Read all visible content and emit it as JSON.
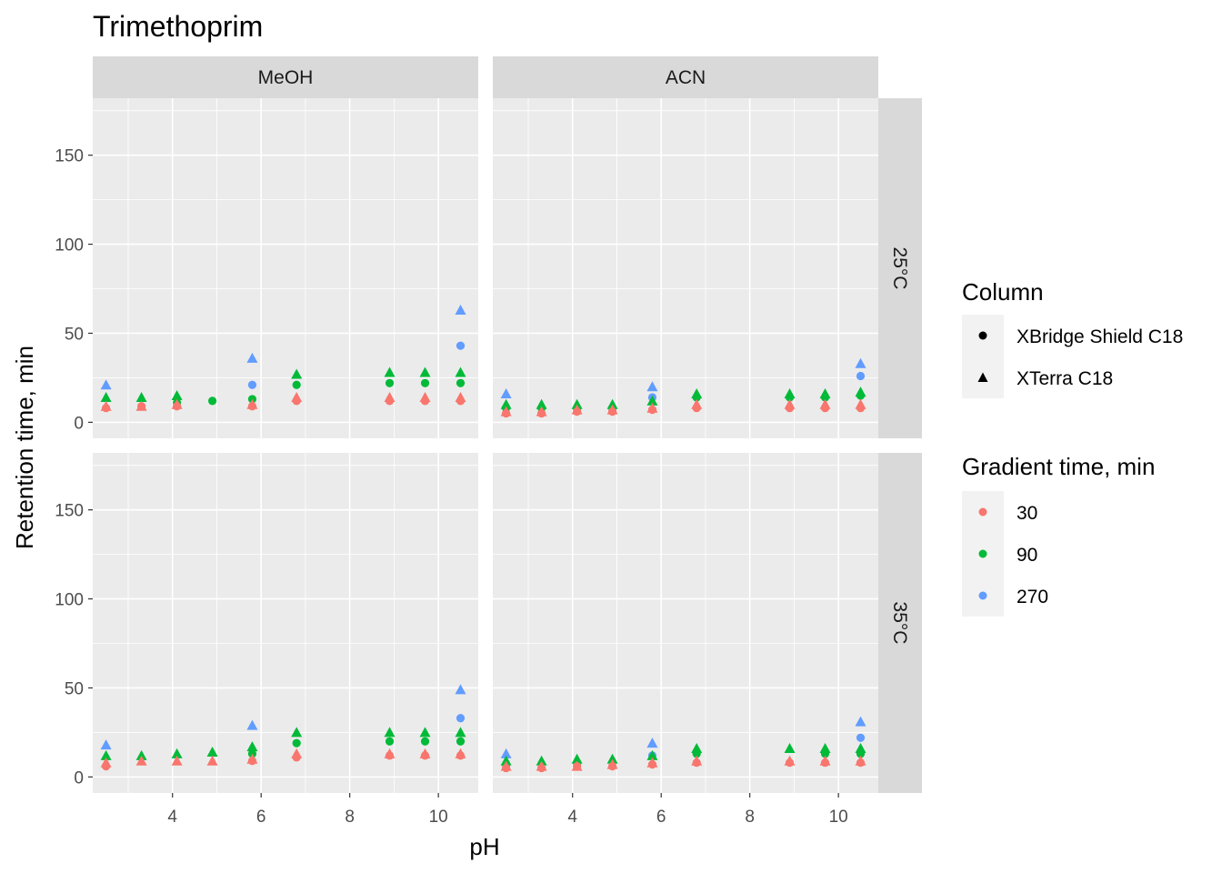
{
  "chart_data": {
    "type": "scatter",
    "title": "Trimethoprim",
    "xlabel": "pH",
    "ylabel": "Retention time, min",
    "xlim": [
      2.2,
      10.9
    ],
    "ylim": [
      -9,
      182
    ],
    "x_ticks": [
      4,
      6,
      8,
      10
    ],
    "y_ticks": [
      0,
      50,
      100,
      150
    ],
    "grid": true,
    "facet_columns": [
      "MeOH",
      "ACN"
    ],
    "facet_rows": [
      "25°C",
      "35°C"
    ],
    "legends": [
      {
        "title": "Column",
        "entries": [
          {
            "label": "XBridge Shield C18",
            "shape": "circle"
          },
          {
            "label": "XTerra C18",
            "shape": "triangle"
          }
        ]
      },
      {
        "title": "Gradient time, min",
        "entries": [
          {
            "label": "30",
            "color": "#F8766D"
          },
          {
            "label": "90",
            "color": "#00BA38"
          },
          {
            "label": "270",
            "color": "#619CFF"
          }
        ]
      }
    ],
    "colors": {
      "30": "#F8766D",
      "90": "#00BA38",
      "270": "#619CFF"
    },
    "panels": [
      {
        "column": "MeOH",
        "row": "25°C",
        "points": [
          {
            "column": "XTerra C18",
            "gradient": "270",
            "x": [
              2.5,
              5.8,
              10.5
            ],
            "y": [
              21,
              36,
              63
            ]
          },
          {
            "column": "XBridge Shield C18",
            "gradient": "270",
            "x": [
              5.8,
              10.5
            ],
            "y": [
              21,
              43
            ]
          },
          {
            "column": "XTerra C18",
            "gradient": "90",
            "x": [
              2.5,
              3.3,
              4.1,
              6.8,
              8.9,
              9.7,
              10.5
            ],
            "y": [
              14,
              14,
              15,
              27,
              28,
              28,
              28
            ]
          },
          {
            "column": "XBridge Shield C18",
            "gradient": "90",
            "x": [
              4.1,
              4.9,
              5.8,
              6.8,
              8.9,
              9.7,
              10.5
            ],
            "y": [
              11,
              12,
              13,
              21,
              22,
              22,
              22
            ]
          },
          {
            "column": "XTerra C18",
            "gradient": "30",
            "x": [
              2.5,
              3.3,
              4.1,
              5.8,
              6.8,
              8.9,
              9.7,
              10.5
            ],
            "y": [
              9,
              9,
              10,
              10,
              14,
              14,
              14,
              14
            ]
          },
          {
            "column": "XBridge Shield C18",
            "gradient": "30",
            "x": [
              2.5,
              3.3,
              4.1,
              5.8,
              6.8,
              8.9,
              9.7,
              10.5
            ],
            "y": [
              8,
              9,
              9,
              9,
              12,
              12,
              12,
              12
            ]
          }
        ]
      },
      {
        "column": "ACN",
        "row": "25°C",
        "points": [
          {
            "column": "XTerra C18",
            "gradient": "270",
            "x": [
              2.5,
              5.8,
              10.5
            ],
            "y": [
              16,
              20,
              33
            ]
          },
          {
            "column": "XBridge Shield C18",
            "gradient": "270",
            "x": [
              5.8,
              10.5
            ],
            "y": [
              14,
              26
            ]
          },
          {
            "column": "XTerra C18",
            "gradient": "90",
            "x": [
              2.5,
              3.3,
              4.1,
              4.9,
              5.8,
              6.8,
              8.9,
              9.7,
              10.5
            ],
            "y": [
              10,
              10,
              10,
              10,
              12,
              16,
              16,
              16,
              17
            ]
          },
          {
            "column": "XBridge Shield C18",
            "gradient": "90",
            "x": [
              2.5,
              3.3,
              4.1,
              4.9,
              6.8,
              8.9,
              9.7,
              10.5
            ],
            "y": [
              8,
              8,
              8,
              8,
              14,
              14,
              14,
              15
            ]
          },
          {
            "column": "XTerra C18",
            "gradient": "30",
            "x": [
              2.5,
              3.3,
              4.1,
              4.9,
              5.8,
              6.8,
              8.9,
              9.7,
              10.5
            ],
            "y": [
              6,
              6,
              7,
              7,
              8,
              10,
              10,
              10,
              10
            ]
          },
          {
            "column": "XBridge Shield C18",
            "gradient": "30",
            "x": [
              2.5,
              3.3,
              4.1,
              4.9,
              5.8,
              6.8,
              8.9,
              9.7,
              10.5
            ],
            "y": [
              5,
              5,
              6,
              6,
              7,
              8,
              8,
              8,
              8
            ]
          }
        ]
      },
      {
        "column": "MeOH",
        "row": "35°C",
        "points": [
          {
            "column": "XTerra C18",
            "gradient": "270",
            "x": [
              2.5,
              5.8,
              10.5
            ],
            "y": [
              18,
              29,
              49
            ]
          },
          {
            "column": "XBridge Shield C18",
            "gradient": "270",
            "x": [
              10.5
            ],
            "y": [
              33
            ]
          },
          {
            "column": "XTerra C18",
            "gradient": "90",
            "x": [
              2.5,
              3.3,
              4.1,
              4.9,
              5.8,
              6.8,
              8.9,
              9.7,
              10.5
            ],
            "y": [
              12,
              12,
              13,
              14,
              17,
              25,
              25,
              25,
              25
            ]
          },
          {
            "column": "XBridge Shield C18",
            "gradient": "90",
            "x": [
              5.8,
              6.8,
              8.9,
              9.7,
              10.5
            ],
            "y": [
              13,
              19,
              20,
              20,
              20
            ]
          },
          {
            "column": "XTerra C18",
            "gradient": "30",
            "x": [
              2.5,
              3.3,
              4.1,
              4.9,
              5.8,
              6.8,
              8.9,
              9.7,
              10.5
            ],
            "y": [
              8,
              9,
              9,
              9,
              10,
              13,
              13,
              13,
              13
            ]
          },
          {
            "column": "XBridge Shield C18",
            "gradient": "30",
            "x": [
              2.5,
              5.8,
              6.8,
              8.9,
              9.7,
              10.5
            ],
            "y": [
              6,
              9,
              11,
              12,
              12,
              12
            ]
          }
        ]
      },
      {
        "column": "ACN",
        "row": "35°C",
        "points": [
          {
            "column": "XTerra C18",
            "gradient": "270",
            "x": [
              2.5,
              5.8,
              10.5
            ],
            "y": [
              13,
              19,
              31
            ]
          },
          {
            "column": "XBridge Shield C18",
            "gradient": "270",
            "x": [
              5.8,
              10.5
            ],
            "y": [
              12,
              22
            ]
          },
          {
            "column": "XTerra C18",
            "gradient": "90",
            "x": [
              2.5,
              3.3,
              4.1,
              4.9,
              5.8,
              6.8,
              8.9,
              9.7,
              10.5
            ],
            "y": [
              9,
              9,
              10,
              10,
              12,
              16,
              16,
              16,
              16
            ]
          },
          {
            "column": "XBridge Shield C18",
            "gradient": "90",
            "x": [
              2.5,
              4.1,
              6.8,
              9.7,
              10.5
            ],
            "y": [
              7,
              8,
              13,
              13,
              13
            ]
          },
          {
            "column": "XTerra C18",
            "gradient": "30",
            "x": [
              2.5,
              3.3,
              4.1,
              4.9,
              5.8,
              6.8,
              8.9,
              9.7,
              10.5
            ],
            "y": [
              6,
              6,
              6,
              7,
              8,
              9,
              9,
              9,
              9
            ]
          },
          {
            "column": "XBridge Shield C18",
            "gradient": "30",
            "x": [
              2.5,
              3.3,
              4.1,
              4.9,
              5.8,
              6.8,
              8.9,
              9.7,
              10.5
            ],
            "y": [
              5,
              5,
              6,
              6,
              7,
              8,
              8,
              8,
              8
            ]
          }
        ]
      }
    ]
  }
}
